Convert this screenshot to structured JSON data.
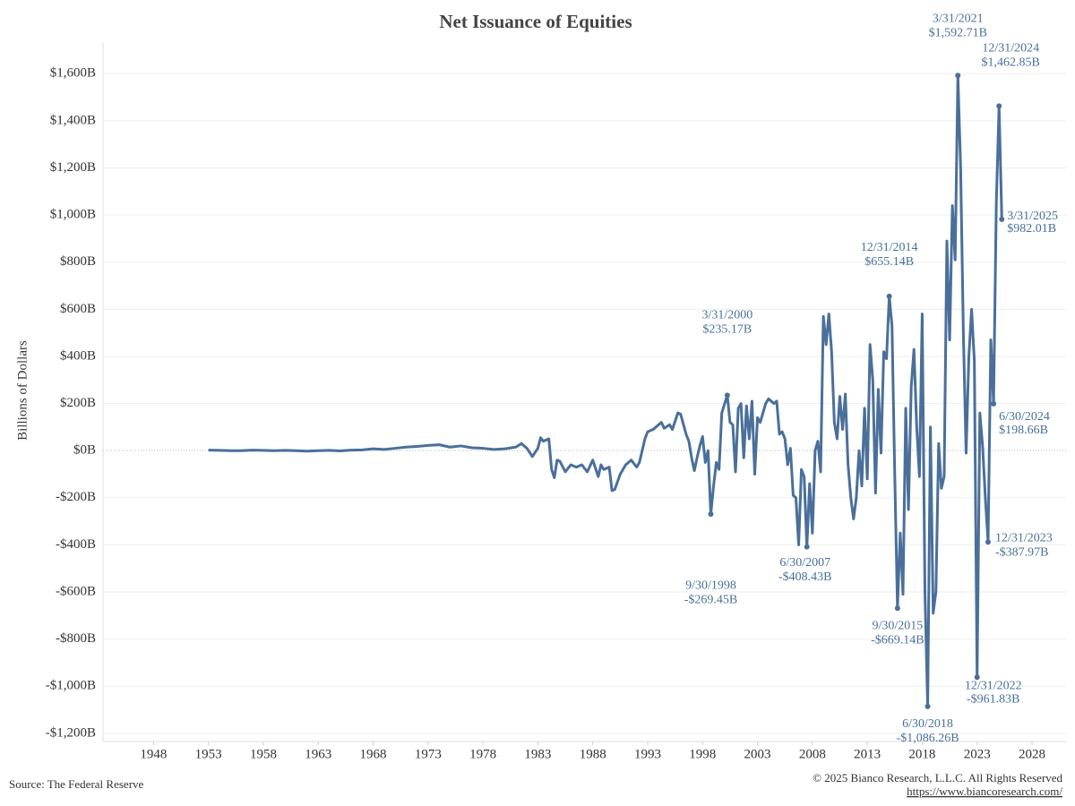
{
  "chart_data": {
    "type": "line",
    "title": "Net Issuance of Equities",
    "y_label": "Billions of Dollars",
    "source": "Source: The Federal Reserve",
    "copyright": "© 2025 Bianco Research, L.L.C. All Rights Reserved",
    "url": "https://www.biancoresearch.com/",
    "xlim": [
      1943.4,
      2031.1
    ],
    "ylim": [
      -1250,
      1700
    ],
    "xticks": [
      1948,
      1953,
      1958,
      1963,
      1968,
      1973,
      1978,
      1983,
      1988,
      1993,
      1998,
      2003,
      2008,
      2013,
      2018,
      2023,
      2028
    ],
    "yticks": [
      {
        "value": -1200,
        "label": "-$1,200B"
      },
      {
        "value": -1000,
        "label": "-$1,000B"
      },
      {
        "value": -800,
        "label": "-$800B"
      },
      {
        "value": -600,
        "label": "-$600B"
      },
      {
        "value": -400,
        "label": "-$400B"
      },
      {
        "value": -200,
        "label": "-$200B"
      },
      {
        "value": 0,
        "label": "$0B"
      },
      {
        "value": 200,
        "label": "$200B"
      },
      {
        "value": 400,
        "label": "$400B"
      },
      {
        "value": 600,
        "label": "$600B"
      },
      {
        "value": 800,
        "label": "$800B"
      },
      {
        "value": 1000,
        "label": "$1,000B"
      },
      {
        "value": 1200,
        "label": "$1,200B"
      },
      {
        "value": 1400,
        "label": "$1,400B"
      },
      {
        "value": 1600,
        "label": "$1,600B"
      }
    ],
    "grid": true,
    "x": [
      1953,
      1954,
      1955,
      1956,
      1957,
      1958,
      1959,
      1960,
      1961,
      1962,
      1963,
      1964,
      1965,
      1966,
      1967,
      1968,
      1969,
      1970,
      1971,
      1972,
      1973,
      1974,
      1975,
      1976,
      1977,
      1978,
      1979,
      1980,
      1981,
      1981.5,
      1982,
      1982.5,
      1983,
      1983.25,
      1983.5,
      1984,
      1984.25,
      1984.5,
      1984.75,
      1985,
      1985.5,
      1986,
      1986.5,
      1987,
      1987.5,
      1988,
      1988.5,
      1988.75,
      1989,
      1989.5,
      1989.75,
      1990,
      1990.5,
      1991,
      1991.5,
      1992,
      1992.25,
      1992.75,
      1993,
      1993.5,
      1994,
      1994.25,
      1994.5,
      1995,
      1995.25,
      1995.75,
      1996,
      1996.5,
      1996.75,
      1997,
      1997.25,
      1997.5,
      1997.75,
      1998,
      1998.25,
      1998.5,
      1998.75,
      1999,
      1999.25,
      1999.5,
      1999.75,
      2000.25,
      2000.5,
      2000.75,
      2001,
      2001.25,
      2001.5,
      2001.75,
      2002,
      2002.25,
      2002.5,
      2002.75,
      2003,
      2003.25,
      2003.75,
      2004,
      2004.5,
      2004.75,
      2005,
      2005.25,
      2005.5,
      2005.75,
      2006,
      2006.25,
      2006.5,
      2006.75,
      2007,
      2007.25,
      2007.5,
      2007.75,
      2008,
      2008.25,
      2008.5,
      2008.75,
      2009,
      2009.25,
      2009.5,
      2009.75,
      2010,
      2010.25,
      2010.5,
      2010.75,
      2011,
      2011.25,
      2011.5,
      2011.75,
      2012,
      2012.25,
      2012.5,
      2012.75,
      2013,
      2013.25,
      2013.5,
      2013.75,
      2014,
      2014.25,
      2014.5,
      2014.75,
      2015,
      2015.25,
      2015.5,
      2015.75,
      2016,
      2016.25,
      2016.5,
      2016.75,
      2017,
      2017.25,
      2017.5,
      2017.75,
      2018,
      2018.25,
      2018.5,
      2018.75,
      2019,
      2019.25,
      2019.5,
      2019.75,
      2020,
      2020.25,
      2020.5,
      2020.75,
      2021,
      2021.25,
      2021.5,
      2021.75,
      2022,
      2022.25,
      2022.5,
      2022.75,
      2023,
      2023.25,
      2023.5,
      2023.75,
      2024,
      2024.25,
      2024.5,
      2024.75,
      2025,
      2025.25
    ],
    "series": [
      {
        "name": "Net Issuance of Equities",
        "color": "#4a6f9a",
        "values": [
          2,
          1,
          0,
          0,
          2,
          1,
          0,
          1,
          0,
          -2,
          0,
          1,
          -1,
          2,
          3,
          8,
          5,
          10,
          15,
          18,
          22,
          25,
          15,
          20,
          12,
          10,
          5,
          8,
          15,
          30,
          10,
          -25,
          10,
          55,
          40,
          50,
          -80,
          -115,
          -40,
          -45,
          -90,
          -60,
          -70,
          -60,
          -90,
          -40,
          -110,
          -60,
          -80,
          -70,
          -170,
          -165,
          -100,
          -60,
          -40,
          -70,
          -50,
          50,
          80,
          90,
          110,
          120,
          95,
          110,
          90,
          160,
          155,
          70,
          40,
          -30,
          -85,
          -30,
          20,
          60,
          -50,
          0,
          -269.45,
          -150,
          -50,
          -80,
          160,
          235.17,
          120,
          110,
          -90,
          180,
          200,
          -30,
          190,
          50,
          210,
          -100,
          140,
          120,
          200,
          220,
          200,
          210,
          70,
          80,
          50,
          -60,
          10,
          -190,
          -200,
          -400,
          -80,
          -110,
          -408.43,
          -140,
          -350,
          0,
          40,
          -90,
          570,
          450,
          580,
          420,
          120,
          50,
          230,
          90,
          240,
          -60,
          -200,
          -290,
          -200,
          0,
          -150,
          180,
          -120,
          450,
          300,
          -180,
          260,
          -10,
          420,
          390,
          655.14,
          530,
          -100,
          -669.14,
          -350,
          -610,
          180,
          -250,
          270,
          430,
          100,
          -110,
          580,
          -600,
          -1086.26,
          100,
          -690,
          -600,
          30,
          -160,
          -110,
          890,
          470,
          1040,
          810,
          1592.71,
          1200,
          500,
          -10,
          400,
          600,
          380,
          -961.83,
          160,
          20,
          -200,
          -387.97,
          470,
          198.66,
          1050,
          1462.85,
          982.01
        ]
      }
    ],
    "annotations": [
      {
        "date": "3/31/2000",
        "label": "$235.17B",
        "x": 2000.25,
        "y": 235.17
      },
      {
        "date": "9/30/1998",
        "label": "-$269.45B",
        "x": 1998.75,
        "y": -269.45
      },
      {
        "date": "6/30/2007",
        "label": "-$408.43B",
        "x": 2007.5,
        "y": -408.43
      },
      {
        "date": "12/31/2014",
        "label": "$655.14B",
        "x": 2015,
        "y": 655.14
      },
      {
        "date": "9/30/2015",
        "label": "-$669.14B",
        "x": 2015.75,
        "y": -669.14
      },
      {
        "date": "6/30/2018",
        "label": "-$1,086.26B",
        "x": 2018.5,
        "y": -1086.26
      },
      {
        "date": "3/31/2021",
        "label": "$1,592.71B",
        "x": 2021.25,
        "y": 1592.71
      },
      {
        "date": "12/31/2022",
        "label": "-$961.83B",
        "x": 2023,
        "y": -961.83
      },
      {
        "date": "12/31/2023",
        "label": "-$387.97B",
        "x": 2024,
        "y": -387.97
      },
      {
        "date": "6/30/2024",
        "label": "$198.66B",
        "x": 2024.5,
        "y": 198.66
      },
      {
        "date": "12/31/2024",
        "label": "$1,462.85B",
        "x": 2025,
        "y": 1462.85
      },
      {
        "date": "3/31/2025",
        "label": "$982.01B",
        "x": 2025.25,
        "y": 982.01
      }
    ]
  }
}
